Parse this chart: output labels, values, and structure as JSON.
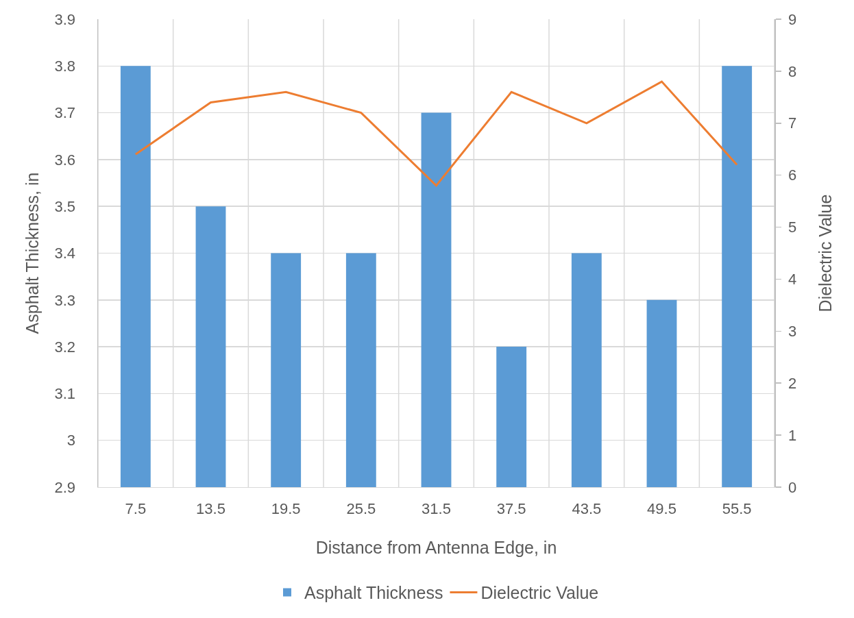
{
  "chart_data": {
    "type": "bar",
    "xlabel": "Distance from Antenna Edge, in",
    "ylabel": "Asphalt Thickness, in",
    "y2label": "Dielectric Value",
    "categories": [
      "7.5",
      "13.5",
      "19.5",
      "25.5",
      "31.5",
      "37.5",
      "43.5",
      "49.5",
      "55.5"
    ],
    "series": [
      {
        "name": "Asphalt Thickness",
        "color": "#5b9bd5",
        "values": [
          3.8,
          3.5,
          3.4,
          3.4,
          3.7,
          3.2,
          3.4,
          3.3,
          3.8
        ]
      },
      {
        "name": "Dielectric Value",
        "type": "line",
        "axis": "y2",
        "color": "#ed7d31",
        "values": [
          6.4,
          7.4,
          7.6,
          7.2,
          5.8,
          7.6,
          7.0,
          7.8,
          6.2
        ]
      }
    ],
    "ylim": [
      2.9,
      3.9
    ],
    "yticks": [
      2.9,
      3,
      3.1,
      3.2,
      3.3,
      3.4,
      3.5,
      3.6,
      3.7,
      3.8,
      3.9
    ],
    "y2lim": [
      0,
      9
    ],
    "y2ticks": [
      0,
      1,
      2,
      3,
      4,
      5,
      6,
      7,
      8,
      9
    ],
    "grid": true,
    "legend": "bottom",
    "marker": "none",
    "line_style": "solid"
  }
}
